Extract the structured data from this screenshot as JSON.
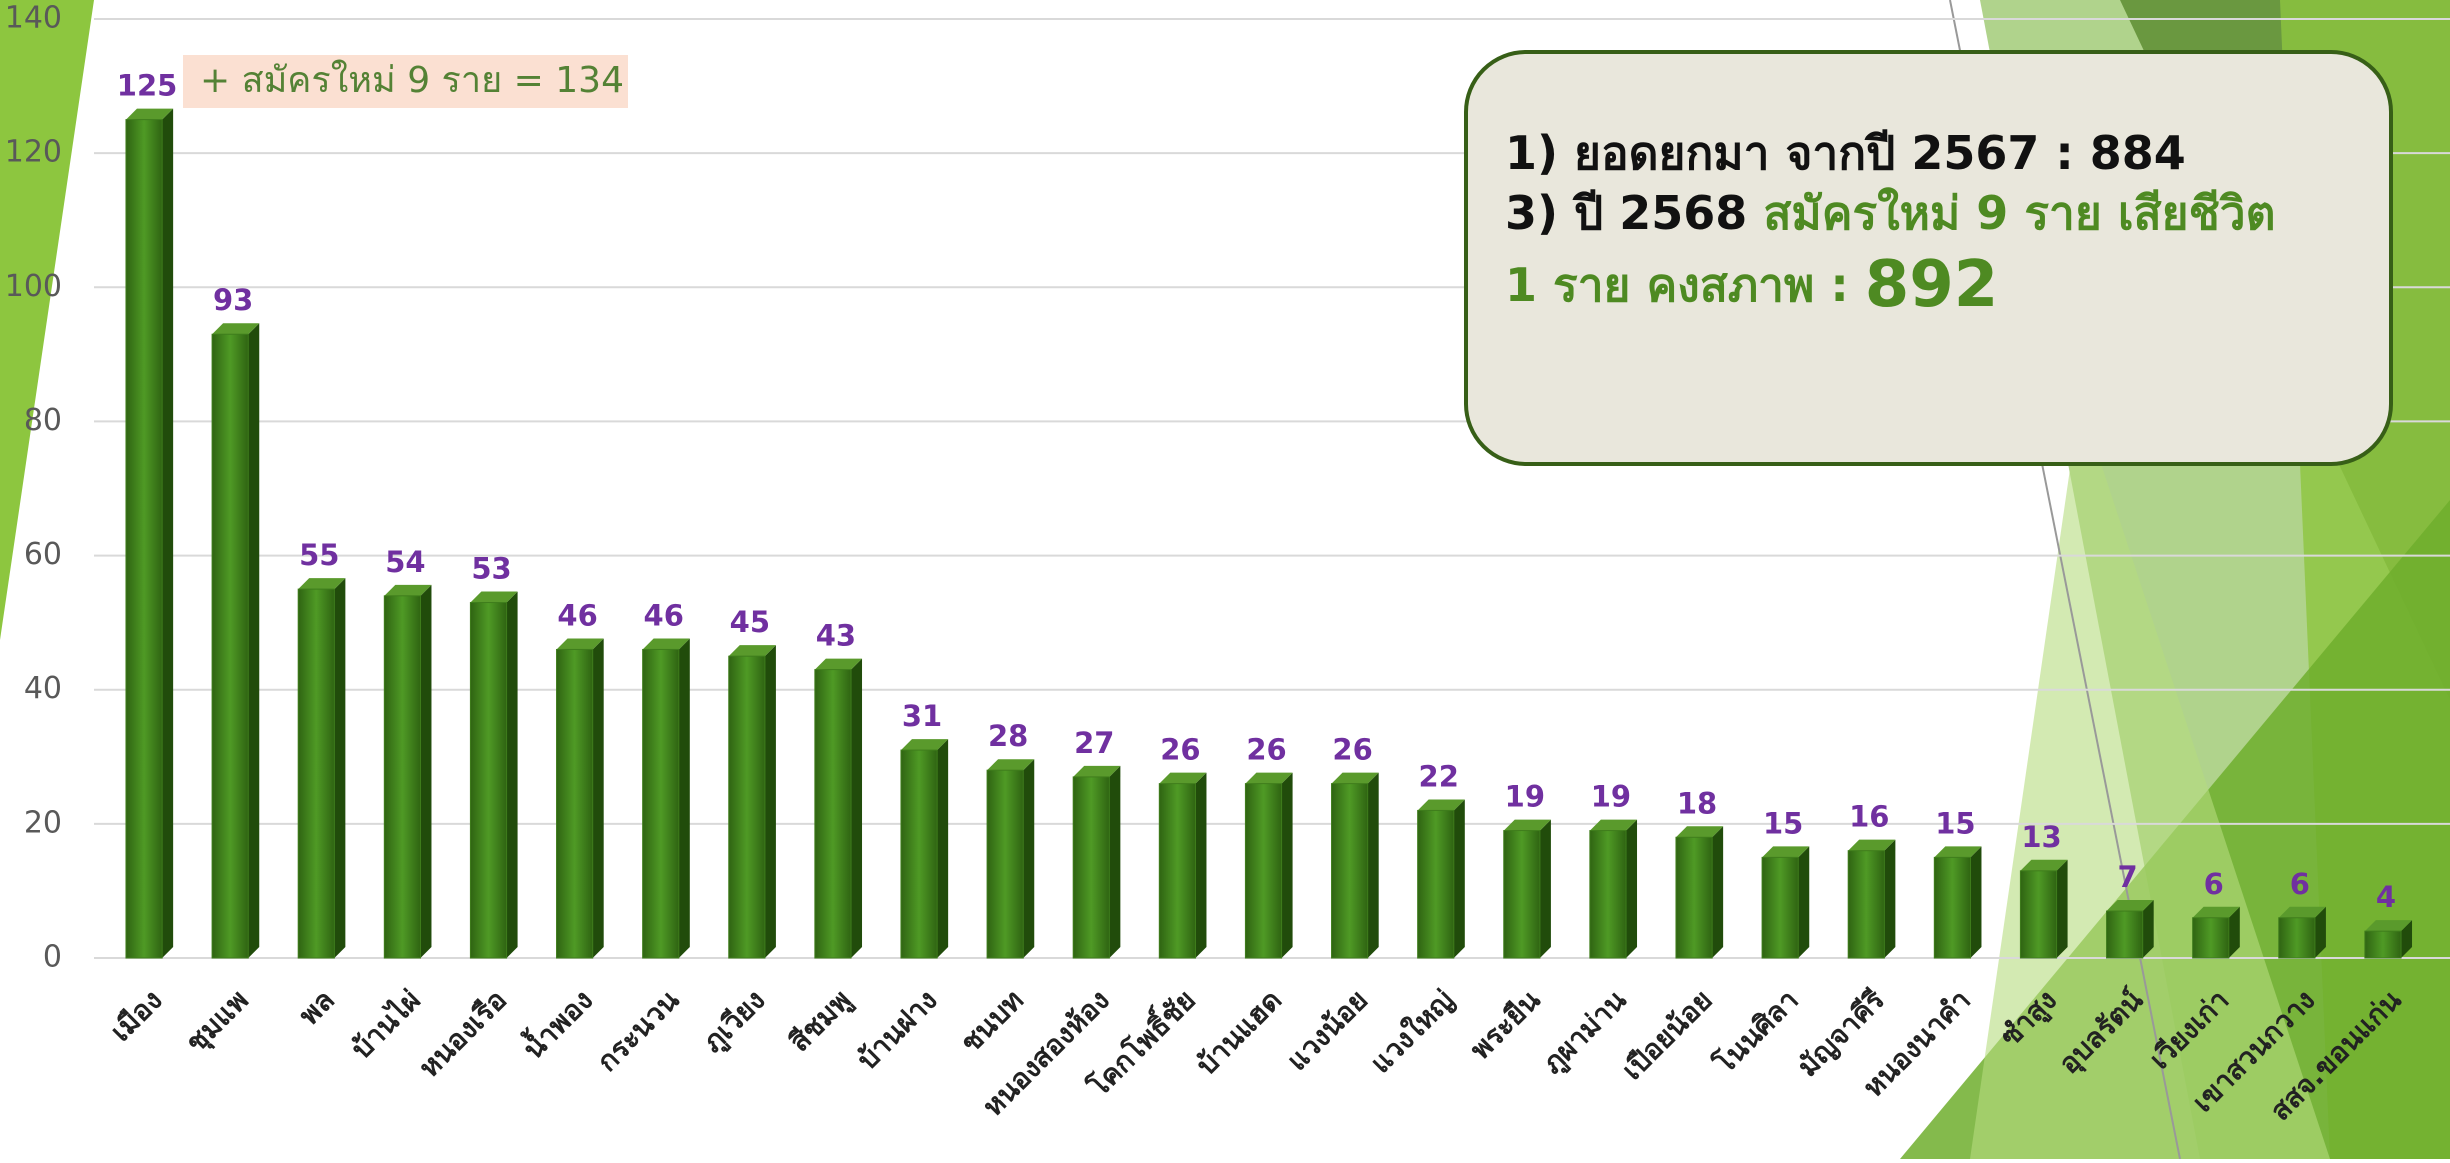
{
  "chart_data": {
    "type": "bar",
    "categories": [
      "เมือง",
      "ชุมแพ",
      "พล",
      "บ้านไผ่",
      "หนองเรือ",
      "น้ำพอง",
      "กระนวน",
      "ภูเวียง",
      "สีชมพู",
      "บ้านฝาง",
      "ชนบท",
      "หนองสองห้อง",
      "โคกโพธิ์ชัย",
      "บ้านแฮด",
      "แวงน้อย",
      "แวงใหญ่",
      "พระยืน",
      "ภูผาม่าน",
      "เปือยน้อย",
      "โนนศิลา",
      "มัญจาคีรี",
      "หนองนาคำ",
      "ซำสูง",
      "อุบลรัตน์",
      "เวียงเก่า",
      "เขาสวนกวาง",
      "สสจ.ขอนแก่น"
    ],
    "values": [
      125,
      93,
      55,
      54,
      53,
      46,
      46,
      45,
      43,
      31,
      28,
      27,
      26,
      26,
      26,
      22,
      19,
      19,
      18,
      15,
      16,
      15,
      13,
      7,
      6,
      6,
      4
    ],
    "color": "#3f7d1c",
    "label_color": "#7030a0",
    "ylim": [
      0,
      140
    ],
    "yticks": [
      0,
      20,
      40,
      60,
      80,
      100,
      120,
      140
    ],
    "grid": true,
    "annotation": "+ สมัครใหม่ 9 ราย = 134",
    "info_box": [
      [
        "1)  ยอดยกมา จากปี 2567 : 884"
      ],
      [
        "3) ปี 2568 ",
        "สมัครใหม่ 9 ราย เสียชีวิต"
      ],
      [
        "1 ราย คงสภาพ :  ",
        "892"
      ]
    ]
  }
}
